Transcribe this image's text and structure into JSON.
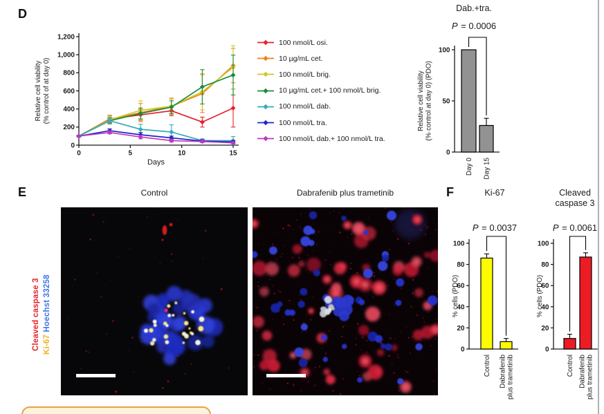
{
  "figure": {
    "panel_d": {
      "label": "D"
    },
    "panel_e": {
      "label": "E",
      "image_titles": [
        "Control",
        "Dabrafenib plus trametinib"
      ],
      "stain_lines": [
        [
          {
            "text": "Cleaved caspase 3",
            "color": "#e5242b"
          }
        ],
        [
          {
            "text": "Ki-67",
            "color": "#efb21f"
          },
          {
            "text": "Hoechst 33258",
            "color": "#3f76e8"
          }
        ]
      ]
    },
    "panel_f": {
      "label": "F"
    },
    "annotation_box": {
      "border_color": "#E8A04A",
      "fill_color": "#FBF3DB"
    }
  },
  "chart_data": [
    {
      "type": "line",
      "title": "",
      "xlabel": "Days",
      "ylabel": "Relative cell viability\n(% control of at day 0)",
      "x": [
        0,
        3,
        6,
        9,
        12,
        15
      ],
      "xticks": [
        0,
        5,
        10,
        15
      ],
      "xlim": [
        0,
        15
      ],
      "ylim": [
        0,
        1200
      ],
      "yticks": [
        0,
        200,
        400,
        600,
        800,
        1000,
        1200
      ],
      "ytick_labels": [
        "0",
        "200",
        "400",
        "600",
        "800",
        "1,000",
        "1,200"
      ],
      "grid": false,
      "legend_position": "right",
      "series": [
        {
          "name": "100 nmol/L osi.",
          "color": "#e62129",
          "values": [
            100,
            290,
            335,
            380,
            255,
            410
          ],
          "errors": [
            10,
            40,
            60,
            55,
            55,
            210
          ]
        },
        {
          "name": "10 µg/mL cet.",
          "color": "#f08019",
          "values": [
            100,
            285,
            360,
            430,
            570,
            880
          ],
          "errors": [
            10,
            45,
            100,
            90,
            210,
            190
          ]
        },
        {
          "name": "100 nmol/L brig.",
          "color": "#cdc82a",
          "values": [
            100,
            280,
            385,
            430,
            590,
            860
          ],
          "errors": [
            10,
            40,
            105,
            80,
            200,
            240
          ]
        },
        {
          "name": "10 µg/mL cet.+ 100 nmol/L brig.",
          "color": "#1a8c3e",
          "values": [
            100,
            270,
            350,
            420,
            645,
            775
          ],
          "errors": [
            10,
            35,
            60,
            70,
            190,
            220
          ]
        },
        {
          "name": "100 nmol/L dab.",
          "color": "#35abb7",
          "values": [
            100,
            270,
            175,
            145,
            50,
            50
          ],
          "errors": [
            5,
            30,
            55,
            80,
            20,
            45
          ]
        },
        {
          "name": "100 nmol/L tra.",
          "color": "#2024c8",
          "values": [
            100,
            160,
            115,
            80,
            45,
            35
          ],
          "errors": [
            5,
            20,
            25,
            20,
            15,
            15
          ]
        },
        {
          "name": "100 nmol/L dab.+ 100 nmol/L tra.",
          "color": "#bd37bf",
          "values": [
            100,
            140,
            90,
            50,
            40,
            25
          ],
          "errors": [
            5,
            15,
            20,
            15,
            10,
            10
          ]
        }
      ]
    },
    {
      "type": "bar",
      "title": "Dab.+tra.",
      "annotation": "P = 0.0006",
      "ylabel": "Relative cell viability\n(% control at day 0) (PDO)",
      "categories": [
        "Day 0",
        "Day 15"
      ],
      "values": [
        100,
        26
      ],
      "errors": [
        0,
        7
      ],
      "bar_color": "#929292",
      "ylim": [
        0,
        100
      ],
      "yticks": [
        0,
        50,
        100
      ]
    },
    {
      "type": "bar",
      "title": "Ki-67",
      "annotation": "P = 0.0037",
      "ylabel": "% cells (PDO)",
      "categories": [
        "Control",
        "Dabrafenib\nplus trametinib"
      ],
      "values": [
        86,
        7
      ],
      "errors": [
        4,
        3
      ],
      "bar_color": "#fcfc00",
      "ylim": [
        0,
        100
      ],
      "yticks": [
        0,
        20,
        40,
        60,
        80,
        100
      ]
    },
    {
      "type": "bar",
      "title": "Cleaved caspase 3",
      "annotation": "P = 0.0061",
      "ylabel": "% cells (PDO)",
      "categories": [
        "Control",
        "Dabrafenib\nplus trametinib"
      ],
      "values": [
        10,
        87
      ],
      "errors": [
        4,
        4
      ],
      "bar_color": "#ec1c24",
      "ylim": [
        0,
        100
      ],
      "yticks": [
        0,
        20,
        40,
        60,
        80,
        100
      ]
    }
  ]
}
